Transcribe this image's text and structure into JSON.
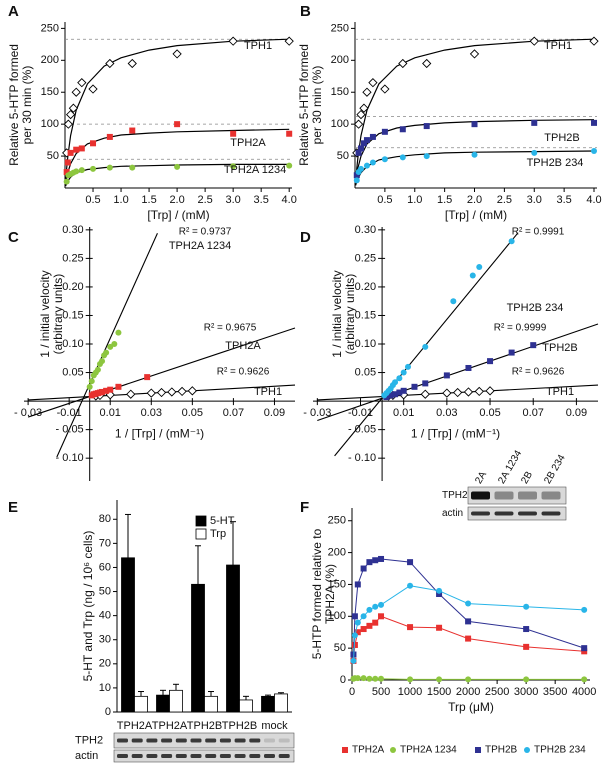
{
  "chart_data": [
    {
      "type": "scatter",
      "panel_label": "A",
      "xlabel": "[Trp] / (mM)",
      "ylabel": [
        "Relative 5-HTP formed",
        "per 30 min (%)"
      ],
      "xlim": [
        0,
        4.05
      ],
      "ylim": [
        0,
        260
      ],
      "xticks": [
        0.5,
        {
          "value": 1,
          "label": "1.0"
        },
        1.5,
        {
          "value": 2,
          "label": "2.0"
        },
        2.5,
        {
          "value": 3,
          "label": "3.0"
        },
        3.5,
        {
          "value": 4,
          "label": "4.0"
        }
      ],
      "yticks": [
        50,
        100,
        150,
        200,
        250
      ],
      "reference_lines": [
        233,
        100,
        45
      ],
      "fit_x": [
        0.01,
        0.02,
        0.05,
        0.1,
        0.2,
        0.4,
        0.7,
        1,
        1.5,
        2,
        3,
        4
      ],
      "series": [
        {
          "name": "TPH1",
          "color": "#000000",
          "marker": "open-diamond",
          "x": [
            0.03,
            0.06,
            0.1,
            0.15,
            0.2,
            0.3,
            0.5,
            0.8,
            1.2,
            2,
            3,
            4
          ],
          "values": [
            55,
            100,
            115,
            125,
            150,
            165,
            155,
            195,
            195,
            210,
            230,
            230
          ],
          "fit_values": [
            12,
            22,
            49,
            82,
            122,
            163,
            191,
            204,
            216,
            223,
            230,
            233
          ]
        },
        {
          "name": "TPH2A",
          "color": "#e8312f",
          "marker": "square",
          "x": [
            0.03,
            0.05,
            0.1,
            0.2,
            0.3,
            0.5,
            0.8,
            1.2,
            2,
            3,
            4
          ],
          "values": [
            25,
            40,
            55,
            60,
            62,
            70,
            80,
            90,
            100,
            85,
            85
          ],
          "fit_values": [
            6,
            11,
            24,
            38,
            54,
            69,
            78,
            83,
            86,
            88,
            90,
            92
          ]
        },
        {
          "name": "TPH2A 1234",
          "color": "#8dc63f",
          "marker": "circle",
          "x": [
            0.03,
            0.06,
            0.1,
            0.15,
            0.2,
            0.3,
            0.5,
            0.8,
            1.2,
            2,
            3,
            4
          ],
          "values": [
            10,
            20,
            22,
            24,
            26,
            28,
            30,
            32,
            32,
            33,
            34,
            35
          ],
          "fit_values": [
            3,
            5,
            11,
            17,
            24,
            29,
            32,
            34,
            35,
            36,
            37,
            37
          ]
        }
      ]
    },
    {
      "type": "scatter",
      "panel_label": "B",
      "xlabel": "[Trp] / (mM)",
      "ylabel": [
        "Relative 5-HTP formed",
        "per 30 min (%)"
      ],
      "xlim": [
        0,
        4.05
      ],
      "ylim": [
        0,
        260
      ],
      "xticks": [
        0.5,
        {
          "value": 1,
          "label": "1.0"
        },
        1.5,
        {
          "value": 2,
          "label": "2.0"
        },
        2.5,
        {
          "value": 3,
          "label": "3.0"
        },
        3.5,
        {
          "value": 4,
          "label": "4.0"
        }
      ],
      "yticks": [
        50,
        100,
        150,
        200,
        250
      ],
      "reference_lines": [
        233,
        112,
        63
      ],
      "fit_x": [
        0.01,
        0.02,
        0.05,
        0.1,
        0.2,
        0.4,
        0.7,
        1,
        1.5,
        2,
        3,
        4
      ],
      "series": [
        {
          "name": "TPH1",
          "color": "#000000",
          "marker": "open-diamond",
          "x": [
            0.03,
            0.06,
            0.1,
            0.15,
            0.2,
            0.3,
            0.5,
            0.8,
            1.2,
            2,
            3,
            4
          ],
          "values": [
            55,
            100,
            115,
            125,
            150,
            165,
            155,
            195,
            195,
            210,
            230,
            230
          ],
          "fit_values": [
            12,
            22,
            49,
            82,
            122,
            163,
            191,
            204,
            216,
            223,
            230,
            233
          ]
        },
        {
          "name": "TPH2B",
          "color": "#2e3192",
          "marker": "square",
          "x": [
            0.03,
            0.06,
            0.1,
            0.15,
            0.2,
            0.3,
            0.5,
            0.8,
            1.2,
            2,
            3,
            4
          ],
          "values": [
            20,
            55,
            62,
            70,
            75,
            80,
            88,
            92,
            97,
            100,
            102,
            102
          ],
          "fit_values": [
            8,
            16,
            32,
            50,
            69,
            85,
            94,
            98,
            102,
            104,
            106,
            107
          ]
        },
        {
          "name": "TPH2B 234",
          "color": "#29b5e8",
          "marker": "circle",
          "x": [
            0.03,
            0.06,
            0.1,
            0.2,
            0.3,
            0.5,
            0.8,
            1.2,
            2,
            3,
            4
          ],
          "values": [
            12,
            25,
            30,
            35,
            40,
            45,
            48,
            50,
            52,
            55,
            58
          ],
          "fit_values": [
            4,
            7,
            15,
            24,
            34,
            44,
            49,
            52,
            55,
            56,
            57,
            58
          ]
        }
      ]
    },
    {
      "type": "scatter",
      "panel_label": "C",
      "xlabel": "1 / [Trp] / (mM⁻¹)",
      "ylabel": [
        "1 / initial velocity",
        "(arbitrary units)"
      ],
      "xlim": [
        -0.032,
        0.1
      ],
      "ylim": [
        -0.14,
        0.305
      ],
      "xticks": [
        {
          "value": -0.03,
          "label": "- 0.03"
        },
        {
          "value": -0.01,
          "label": "-0.01"
        },
        0.01,
        0.03,
        0.05,
        0.07,
        0.09
      ],
      "yticks": [
        {
          "value": -0.1,
          "label": "- 0.10"
        },
        {
          "value": -0.05,
          "label": "- 0.05"
        },
        0.05,
        {
          "value": 0.1,
          "label": "0.10"
        },
        0.15,
        {
          "value": 0.2,
          "label": "0.20"
        },
        0.25,
        {
          "value": 0.3,
          "label": "0.30"
        }
      ],
      "series": [
        {
          "name": "TPH1",
          "color": "#000000",
          "marker": "open-diamond",
          "r2": "R² = 0.9626",
          "x": [
            0.003,
            0.005,
            0.01,
            0.02,
            0.03,
            0.035,
            0.04,
            0.045,
            0.05
          ],
          "values": [
            0.009,
            0.01,
            0.011,
            0.012,
            0.014,
            0.015,
            0.016,
            0.017,
            0.018
          ],
          "line_x": [
            -0.03,
            0.1
          ],
          "line_values": [
            0.002,
            0.028
          ]
        },
        {
          "name": "TPH2A",
          "color": "#e8312f",
          "marker": "square",
          "r2": "R² = 0.9675",
          "x": [
            0.001,
            0.002,
            0.003,
            0.004,
            0.005,
            0.006,
            0.008,
            0.01,
            0.014,
            0.028
          ],
          "values": [
            0.01,
            0.012,
            0.013,
            0.014,
            0.015,
            0.016,
            0.018,
            0.02,
            0.025,
            0.042
          ],
          "line_x": [
            -0.03,
            0.1
          ],
          "line_values": [
            -0.028,
            0.128
          ]
        },
        {
          "name": "TPH2A 1234",
          "color": "#8dc63f",
          "marker": "circle",
          "r2": "R² = 0.9737",
          "x": [
            0,
            0.001,
            0.002,
            0.003,
            0.004,
            0.005,
            0.006,
            0.007,
            0.008,
            0.01,
            0.012,
            0.014
          ],
          "values": [
            0.025,
            0.035,
            0.045,
            0.05,
            0.055,
            0.065,
            0.07,
            0.08,
            0.085,
            0.095,
            0.1,
            0.12
          ],
          "line_x": [
            -0.016,
            0.033
          ],
          "line_values": [
            -0.098,
            0.294
          ]
        }
      ]
    },
    {
      "type": "scatter",
      "panel_label": "D",
      "xlabel": "1 / [Trp] / (mM⁻¹)",
      "ylabel": [
        "1 / initial velocity",
        "(arbitrary units)"
      ],
      "xlim": [
        -0.032,
        0.1
      ],
      "ylim": [
        -0.14,
        0.305
      ],
      "xticks": [
        {
          "value": -0.03,
          "label": "- 0.03"
        },
        {
          "value": -0.01,
          "label": "-0.01"
        },
        0.01,
        0.03,
        0.05,
        0.07,
        0.09
      ],
      "yticks": [
        {
          "value": -0.1,
          "label": "- 0.10"
        },
        {
          "value": -0.05,
          "label": "- 0.05"
        },
        0.05,
        {
          "value": 0.1,
          "label": "0.10"
        },
        0.15,
        {
          "value": 0.2,
          "label": "0.20"
        },
        0.25,
        {
          "value": 0.3,
          "label": "0.30"
        }
      ],
      "series": [
        {
          "name": "TPH1",
          "color": "#000000",
          "marker": "open-diamond",
          "r2": "R² = 0.9626",
          "x": [
            0.003,
            0.005,
            0.01,
            0.02,
            0.03,
            0.035,
            0.04,
            0.045,
            0.05
          ],
          "values": [
            0.009,
            0.01,
            0.011,
            0.012,
            0.014,
            0.015,
            0.016,
            0.017,
            0.018
          ],
          "line_x": [
            -0.03,
            0.1
          ],
          "line_values": [
            0.002,
            0.028
          ]
        },
        {
          "name": "TPH2B",
          "color": "#2e3192",
          "marker": "square",
          "r2": "R² = 0.9999",
          "x": [
            0.002,
            0.004,
            0.006,
            0.008,
            0.01,
            0.015,
            0.02,
            0.03,
            0.04,
            0.05,
            0.06,
            0.07
          ],
          "values": [
            0.007,
            0.01,
            0.012,
            0.015,
            0.018,
            0.025,
            0.031,
            0.045,
            0.058,
            0.07,
            0.085,
            0.098
          ],
          "line_x": [
            -0.03,
            0.1
          ],
          "line_values": [
            -0.034,
            0.135
          ]
        },
        {
          "name": "TPH2B 234",
          "color": "#29b5e8",
          "marker": "circle",
          "r2": "R² = 0.9991",
          "x": [
            0.001,
            0.002,
            0.003,
            0.004,
            0.005,
            0.006,
            0.008,
            0.01,
            0.012,
            0.02,
            0.033,
            0.042,
            0.045,
            0.06
          ],
          "values": [
            0.01,
            0.014,
            0.018,
            0.022,
            0.028,
            0.033,
            0.04,
            0.05,
            0.06,
            0.095,
            0.175,
            0.22,
            0.235,
            0.28
          ],
          "line_x": [
            -0.022,
            0.063
          ],
          "line_values": [
            -0.096,
            0.295
          ]
        }
      ]
    },
    {
      "type": "bar",
      "panel_label": "E",
      "ylabel": [
        "5-HT and Trp (ng / 10⁶ cells)"
      ],
      "ylim": [
        0,
        88
      ],
      "yticks": [
        0,
        10,
        20,
        30,
        40,
        50,
        60,
        70,
        80
      ],
      "categories": [
        [
          "TPH2A"
        ],
        [
          "TPH2A",
          "1234"
        ],
        [
          "TPH2B"
        ],
        [
          "TPH2B",
          "234"
        ],
        [
          "mock"
        ]
      ],
      "series": [
        {
          "name": "5-HT",
          "color": "#000000",
          "values": [
            64,
            7,
            53,
            61,
            6.5
          ],
          "errors": [
            18,
            2,
            16,
            18,
            0.5
          ]
        },
        {
          "name": "Trp",
          "color": "#ffffff",
          "values": [
            6.5,
            9,
            6.5,
            5,
            7.5
          ],
          "errors": [
            2,
            2.5,
            2,
            1.5,
            0.5
          ]
        }
      ],
      "blot_labels": [
        "TPH2",
        "actin"
      ]
    },
    {
      "type": "line",
      "panel_label": "F",
      "xlabel": "Trp (μM)",
      "ylabel": [
        "5-HTP formed relative to",
        "TPH2A (%)"
      ],
      "xlim": [
        0,
        4100
      ],
      "ylim": [
        0,
        270
      ],
      "xticks": [
        0,
        500,
        1000,
        1500,
        2000,
        2500,
        3000,
        3500,
        4000
      ],
      "yticks": [
        0,
        50,
        100,
        150,
        200,
        250
      ],
      "x": [
        25,
        50,
        100,
        200,
        300,
        400,
        500,
        1000,
        1500,
        2000,
        3000,
        4000
      ],
      "series": [
        {
          "name": "TPH2A",
          "color": "#e8312f",
          "marker": "square",
          "values": [
            30,
            55,
            75,
            80,
            85,
            90,
            100,
            83,
            82,
            65,
            52,
            45
          ]
        },
        {
          "name": "TPH2A 1234",
          "color": "#8dc63f",
          "marker": "circle",
          "values": [
            2,
            3,
            3,
            3,
            2,
            2,
            2,
            1,
            1,
            1,
            1,
            1
          ]
        },
        {
          "name": "TPH2B",
          "color": "#2e3192",
          "marker": "square",
          "values": [
            40,
            100,
            150,
            175,
            185,
            188,
            190,
            185,
            135,
            92,
            80,
            50
          ]
        },
        {
          "name": "TPH2B 234",
          "color": "#29b5e8",
          "marker": "circle",
          "values": [
            30,
            70,
            90,
            100,
            110,
            115,
            118,
            148,
            140,
            120,
            115,
            110
          ]
        }
      ],
      "inset_lane_labels": [
        "2A",
        "2A 1234",
        "2B",
        "2B 234"
      ],
      "inset_blot_labels": [
        "TPH2",
        "actin"
      ]
    }
  ]
}
